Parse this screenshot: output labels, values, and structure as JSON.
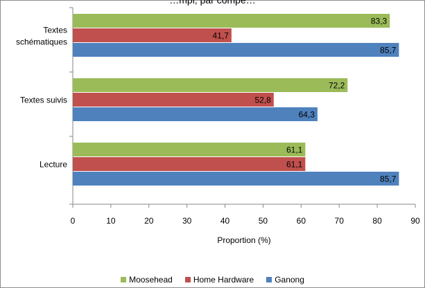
{
  "chart_data": {
    "type": "bar",
    "orientation": "horizontal",
    "title": "…mpl, par compé…",
    "categories": [
      "Textes schématiques",
      "Textes suivis",
      "Lecture"
    ],
    "category_label_lines": [
      [
        "Textes",
        "schématiques"
      ],
      [
        "Textes suivis"
      ],
      [
        "Lecture"
      ]
    ],
    "series": [
      {
        "name": "Moosehead",
        "color": "#9bbb59",
        "values": [
          83.3,
          72.2,
          61.1
        ],
        "labels": [
          "83,3",
          "72,2",
          "61,1"
        ]
      },
      {
        "name": "Home Hardware",
        "color": "#c0504d",
        "values": [
          41.7,
          52.8,
          61.1
        ],
        "labels": [
          "41,7",
          "52,8",
          "61,1"
        ]
      },
      {
        "name": "Ganong",
        "color": "#4f81bd",
        "values": [
          85.7,
          64.3,
          85.7
        ],
        "labels": [
          "85,7",
          "64,3",
          "85,7"
        ]
      }
    ],
    "xlabel": "Proportion (%)",
    "xlim": [
      0,
      90
    ],
    "xticks": [
      0,
      10,
      20,
      30,
      40,
      50,
      60,
      70,
      80,
      90
    ],
    "grid": false,
    "legend_position": "bottom"
  }
}
